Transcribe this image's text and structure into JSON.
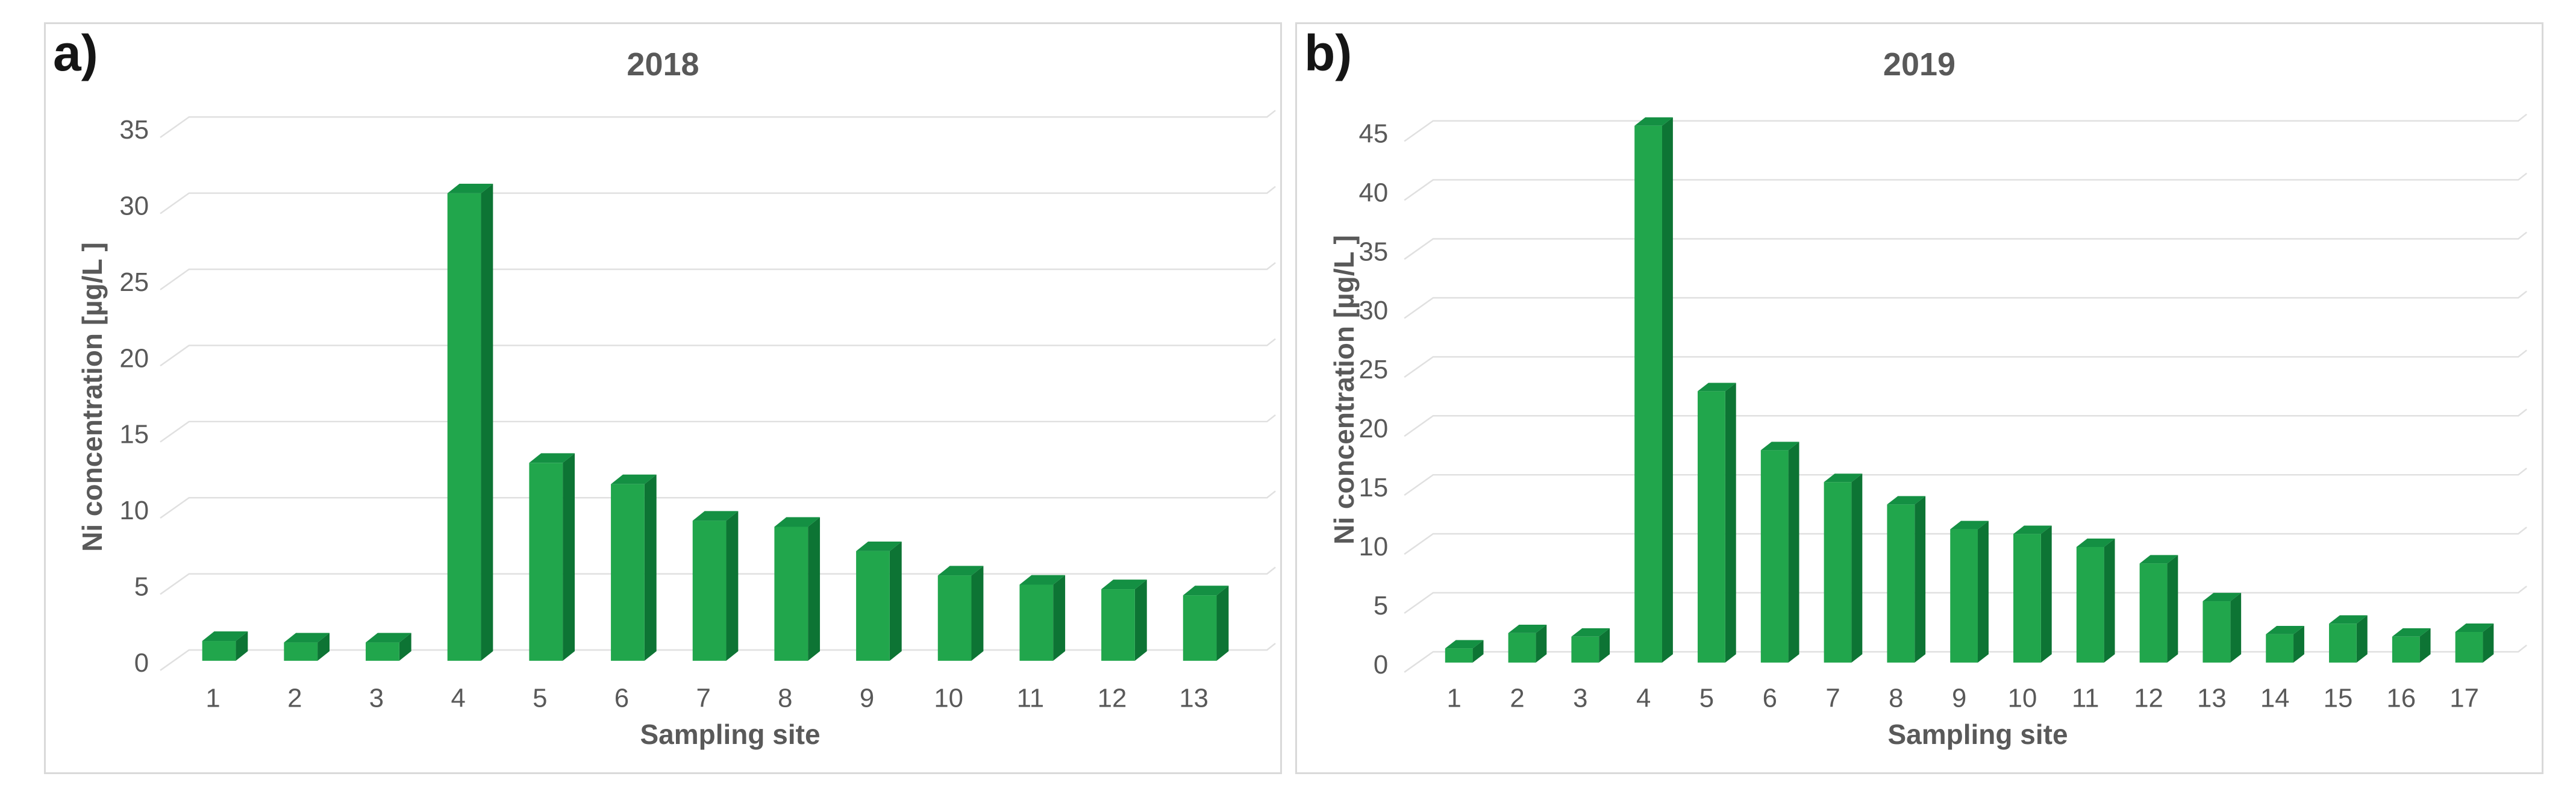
{
  "figure": {
    "background": "#ffffff"
  },
  "colors": {
    "bar_front": "#21a64c",
    "bar_side": "#0d7434",
    "bar_top": "#149043",
    "gridline": "#e0e0e0",
    "axis_text": "#595959",
    "title_text": "#595959",
    "panel_border": "#d9d9d9",
    "panel_label_text": "#151515"
  },
  "chart_data": [
    {
      "type": "bar",
      "panel_label": "a)",
      "title": "2018",
      "xlabel": "Sampling site",
      "ylabel": "Ni concentration [µg/L ]",
      "categories": [
        "1",
        "2",
        "3",
        "4",
        "5",
        "6",
        "7",
        "8",
        "9",
        "10",
        "11",
        "12",
        "13"
      ],
      "values": [
        1.3,
        1.2,
        1.2,
        30.7,
        13.0,
        11.6,
        9.2,
        8.8,
        7.2,
        5.6,
        5.0,
        4.7,
        4.3
      ],
      "yticks": [
        0,
        5,
        10,
        15,
        20,
        25,
        30,
        35
      ],
      "ylim": [
        0,
        37.5
      ],
      "grid": true,
      "legend": false,
      "bar_style": "3d",
      "bar_color": "#21a64c"
    },
    {
      "type": "bar",
      "panel_label": "b)",
      "title": "2019",
      "xlabel": "Sampling site",
      "ylabel": "Ni concentration [µg/L ]",
      "categories": [
        "1",
        "2",
        "3",
        "4",
        "5",
        "6",
        "7",
        "8",
        "9",
        "10",
        "11",
        "12",
        "13",
        "14",
        "15",
        "16",
        "17"
      ],
      "values": [
        1.2,
        2.5,
        2.2,
        45.5,
        23.0,
        18.0,
        15.3,
        13.4,
        11.3,
        10.9,
        9.8,
        8.4,
        5.2,
        2.4,
        3.3,
        2.2,
        2.6
      ],
      "yticks": [
        0,
        5,
        10,
        15,
        20,
        25,
        30,
        35,
        40,
        45
      ],
      "ylim": [
        0,
        47.5
      ],
      "grid": true,
      "legend": false,
      "bar_style": "3d",
      "bar_color": "#21a64c"
    }
  ]
}
